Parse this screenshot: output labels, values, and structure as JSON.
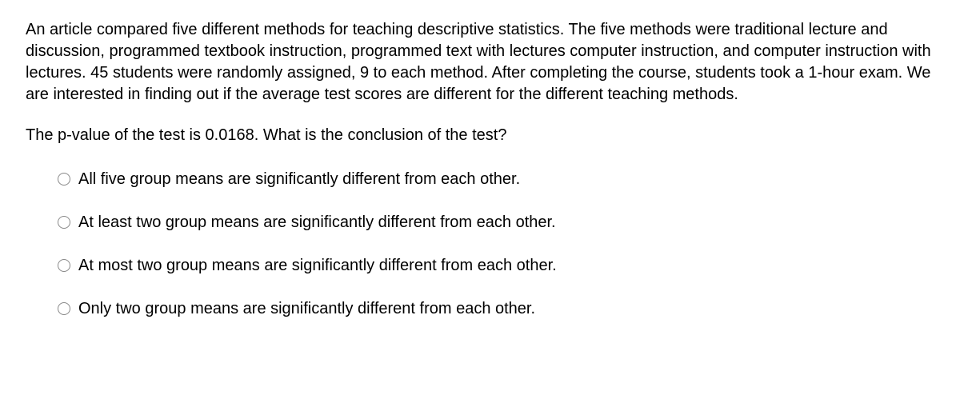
{
  "question": {
    "paragraph": "An article compared five different methods for teaching descriptive statistics. The five methods were traditional lecture and discussion, programmed textbook instruction, programmed text with lectures computer instruction, and computer instruction with lectures. 45 students were randomly assigned, 9 to each method. After completing the course, students took a 1-hour exam. We are interested in finding out if the average test scores are different for the different teaching methods.",
    "prompt": "The p-value of the test is 0.0168. What is the conclusion of the test?",
    "options": [
      "All five group means are significantly different from each other.",
      "At least two group means are significantly different from each other.",
      "At most two group means are significantly different from each other.",
      "Only two group means are significantly different from each other."
    ]
  }
}
